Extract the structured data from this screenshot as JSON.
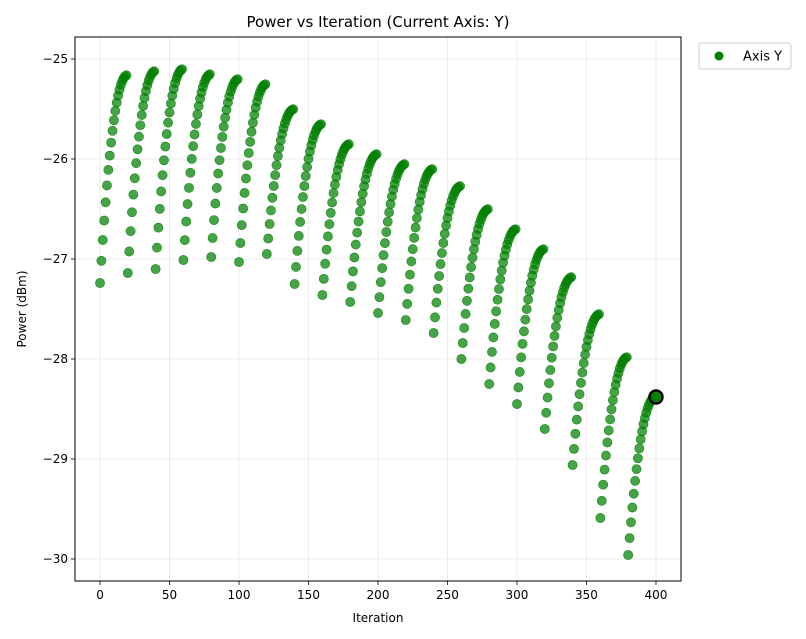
{
  "chart_data": {
    "type": "scatter",
    "title": "Power vs Iteration (Current Axis: Y)",
    "xlabel": "Iteration",
    "ylabel": "Power (dBm)",
    "xlim": [
      -18,
      418
    ],
    "ylim": [
      -30.22,
      -24.78
    ],
    "x_ticks": [
      0,
      50,
      100,
      150,
      200,
      250,
      300,
      350,
      400
    ],
    "y_ticks": [
      -25,
      -26,
      -27,
      -28,
      -29,
      -30
    ],
    "y_tick_labels": [
      "−25",
      "−26",
      "−27",
      "−28",
      "−29",
      "−30"
    ],
    "grid": true,
    "legend": {
      "position": "outside-top-right",
      "entries": [
        "Axis Y"
      ]
    },
    "colors": {
      "series": "#008000",
      "highlight_edge": "#000000"
    },
    "sweep_model": "each sweep rises from its minimum at its start iteration to its peak 20 iterations later; one point per iteration",
    "sweeps": [
      {
        "start": 0,
        "min": -27.24,
        "peak": -25.16
      },
      {
        "start": 20,
        "min": -27.14,
        "peak": -25.12
      },
      {
        "start": 40,
        "min": -27.1,
        "peak": -25.1
      },
      {
        "start": 60,
        "min": -27.01,
        "peak": -25.15
      },
      {
        "start": 80,
        "min": -26.98,
        "peak": -25.2
      },
      {
        "start": 100,
        "min": -27.03,
        "peak": -25.25
      },
      {
        "start": 120,
        "min": -26.95,
        "peak": -25.5
      },
      {
        "start": 140,
        "min": -27.25,
        "peak": -25.65
      },
      {
        "start": 160,
        "min": -27.36,
        "peak": -25.85
      },
      {
        "start": 180,
        "min": -27.43,
        "peak": -25.95
      },
      {
        "start": 200,
        "min": -27.54,
        "peak": -26.05
      },
      {
        "start": 220,
        "min": -27.61,
        "peak": -26.1
      },
      {
        "start": 240,
        "min": -27.74,
        "peak": -26.27
      },
      {
        "start": 260,
        "min": -28.0,
        "peak": -26.5
      },
      {
        "start": 280,
        "min": -28.25,
        "peak": -26.7
      },
      {
        "start": 300,
        "min": -28.45,
        "peak": -26.9
      },
      {
        "start": 320,
        "min": -28.7,
        "peak": -27.18
      },
      {
        "start": 340,
        "min": -29.06,
        "peak": -27.55
      },
      {
        "start": 360,
        "min": -29.59,
        "peak": -27.98
      },
      {
        "start": 380,
        "min": -29.96,
        "peak": -28.38
      }
    ],
    "highlight_point": {
      "x": 400,
      "y": -28.38
    },
    "x_max": 400
  }
}
